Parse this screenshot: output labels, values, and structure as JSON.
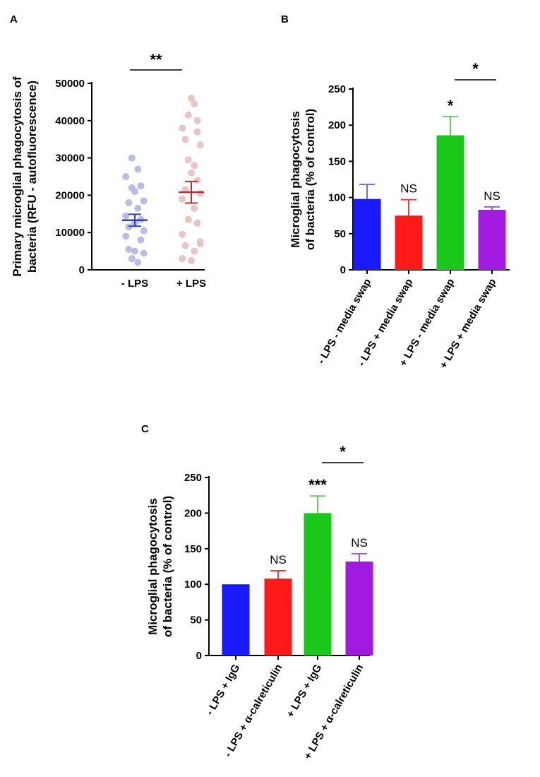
{
  "chart_data": [
    {
      "panel": "A",
      "type": "scatter",
      "title": "",
      "xlabel": "",
      "ylabel_line1": "Primary microglial phagocytosis of",
      "ylabel_line2": "bacteria (RFU - autofluorescence)",
      "ylim": [
        0,
        50000
      ],
      "yticks": [
        0,
        10000,
        20000,
        30000,
        40000,
        50000
      ],
      "categories": [
        "- LPS",
        "+ LPS"
      ],
      "series": [
        {
          "name": "- LPS",
          "color": "#b8bde8",
          "mean_color": "#2e3fc0",
          "mean": 13300,
          "sem": 1600,
          "points": [
            [
              -0.5,
              30000
            ],
            [
              0.5,
              27000
            ],
            [
              -1.5,
              25000
            ],
            [
              1,
              22500
            ],
            [
              -0.5,
              22000
            ],
            [
              0,
              21000
            ],
            [
              1.5,
              18500
            ],
            [
              -1,
              18000
            ],
            [
              0.5,
              16500
            ],
            [
              -1.5,
              14500
            ],
            [
              1,
              13500
            ],
            [
              0,
              12500
            ],
            [
              -1,
              11500
            ],
            [
              1.5,
              10500
            ],
            [
              -1.5,
              9000
            ],
            [
              1,
              8000
            ],
            [
              -1,
              5500
            ],
            [
              0,
              5000
            ],
            [
              1.5,
              4500
            ],
            [
              -0.5,
              3000
            ],
            [
              0.5,
              2000
            ]
          ]
        },
        {
          "name": "+ LPS",
          "color": "#e8c4c4",
          "mean_color": "#b83030",
          "mean": 20800,
          "sem": 2900,
          "points": [
            [
              0,
              46000
            ],
            [
              0.5,
              44500
            ],
            [
              -0.5,
              41500
            ],
            [
              1,
              40000
            ],
            [
              -1.5,
              38000
            ],
            [
              1,
              37000
            ],
            [
              -1,
              35000
            ],
            [
              1.5,
              33500
            ],
            [
              -0.5,
              29500
            ],
            [
              0.5,
              28000
            ],
            [
              0,
              26000
            ],
            [
              1,
              24000
            ],
            [
              -1,
              21500
            ],
            [
              1.5,
              20500
            ],
            [
              -1.5,
              19000
            ],
            [
              0.5,
              16500
            ],
            [
              -0.5,
              13500
            ],
            [
              1,
              12500
            ],
            [
              -1.5,
              9500
            ],
            [
              1.5,
              7000
            ],
            [
              -1,
              6500
            ],
            [
              0.5,
              5000
            ],
            [
              -1.5,
              3000
            ],
            [
              0,
              2500
            ],
            [
              1.5,
              7500
            ]
          ]
        }
      ],
      "annotations": [
        {
          "type": "bracket",
          "from": 0,
          "to": 1,
          "label": "**"
        }
      ]
    },
    {
      "panel": "B",
      "type": "bar",
      "title": "",
      "xlabel": "",
      "ylabel_line1": "Microglial phagocytosis",
      "ylabel_line2": "of bacteria (% of control)",
      "ylim": [
        0,
        250
      ],
      "yticks": [
        0,
        50,
        100,
        150,
        200,
        250
      ],
      "categories": [
        "- LPS - media swap",
        "- LPS + media swap",
        "+ LPS - media swap",
        "+ LPS + media swap"
      ],
      "values": [
        98,
        75,
        186,
        83
      ],
      "errors": [
        20,
        22,
        26,
        4
      ],
      "colors": [
        "#1a1aff",
        "#ff1a1a",
        "#1ac81a",
        "#a01ae0"
      ],
      "err_colors": [
        "#7070d0",
        "#e04040",
        "#70c070",
        "#a060d0"
      ],
      "labels": [
        "",
        "NS",
        "*",
        "NS"
      ],
      "annotations": [
        {
          "type": "bracket",
          "from": 2,
          "to": 3,
          "label": "*"
        }
      ]
    },
    {
      "panel": "C",
      "type": "bar",
      "title": "",
      "xlabel": "",
      "ylabel_line1": "Microglial phagocytosis",
      "ylabel_line2": "of bacteria (% of control)",
      "ylim": [
        0,
        250
      ],
      "yticks": [
        0,
        50,
        100,
        150,
        200,
        250
      ],
      "categories": [
        "- LPS + IgG",
        "- LPS + α-calreticulin",
        "+ LPS + IgG",
        "+ LPS + α-calreticulin"
      ],
      "values": [
        100,
        108,
        200,
        132
      ],
      "errors": [
        0,
        11,
        24,
        11
      ],
      "colors": [
        "#1a1aff",
        "#ff1a1a",
        "#1ac81a",
        "#a01ae0"
      ],
      "err_colors": [
        "#7070d0",
        "#e04040",
        "#70c070",
        "#a060d0"
      ],
      "labels": [
        "",
        "NS",
        "***",
        "NS"
      ],
      "annotations": [
        {
          "type": "bracket",
          "from": 2,
          "to": 3,
          "label": "*"
        }
      ]
    }
  ]
}
